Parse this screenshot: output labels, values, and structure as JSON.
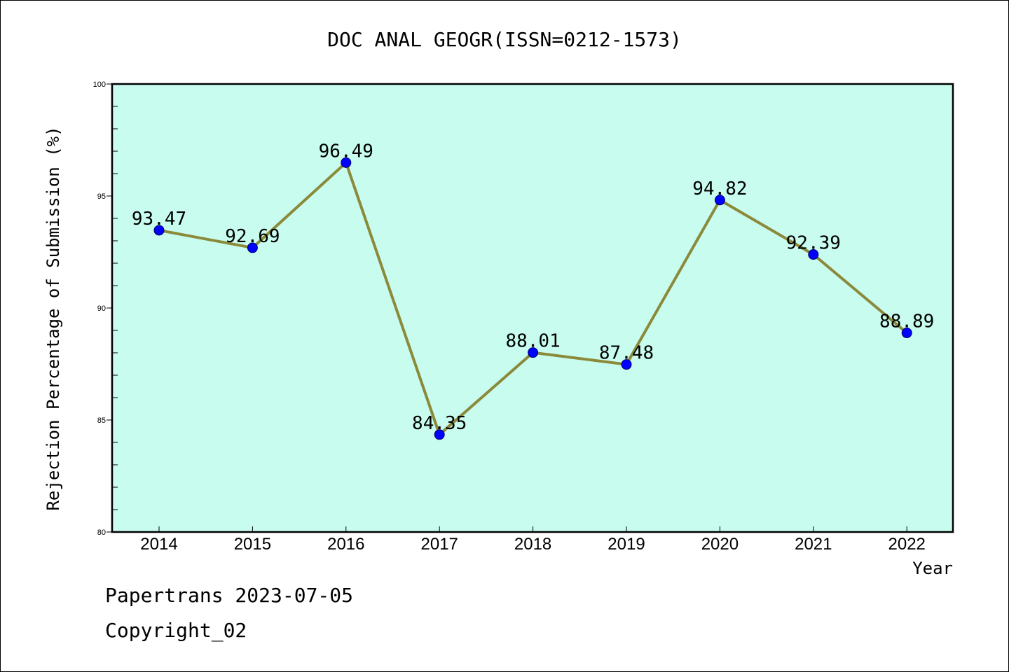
{
  "chart_data": {
    "type": "line",
    "title": "DOC ANAL GEOGR(ISSN=0212-1573)",
    "xlabel": "Year",
    "ylabel": "Rejection Percentage of Submission (%)",
    "x": [
      "2014",
      "2015",
      "2016",
      "2017",
      "2018",
      "2019",
      "2020",
      "2021",
      "2022"
    ],
    "values": [
      93.47,
      92.69,
      96.49,
      84.35,
      88.01,
      87.48,
      94.82,
      92.39,
      88.89
    ],
    "data_labels": [
      "93.47",
      "92.69",
      "96.49",
      "84.35",
      "88.01",
      "87.48",
      "94.82",
      "92.39",
      "88.89"
    ],
    "ylim": [
      80,
      100
    ],
    "yticks": [
      80,
      85,
      90,
      95,
      100
    ],
    "ytick_labels": [
      "80",
      "85",
      "90",
      "95",
      "100"
    ],
    "grid": false,
    "legend": "none",
    "colors": {
      "plot_background": "#c8fcee",
      "line": "#8b8a3b",
      "marker": "#0000ff",
      "axis": "#000000"
    }
  },
  "footer": {
    "line1": "Papertrans 2023-07-05",
    "line2": "Copyright_02"
  }
}
